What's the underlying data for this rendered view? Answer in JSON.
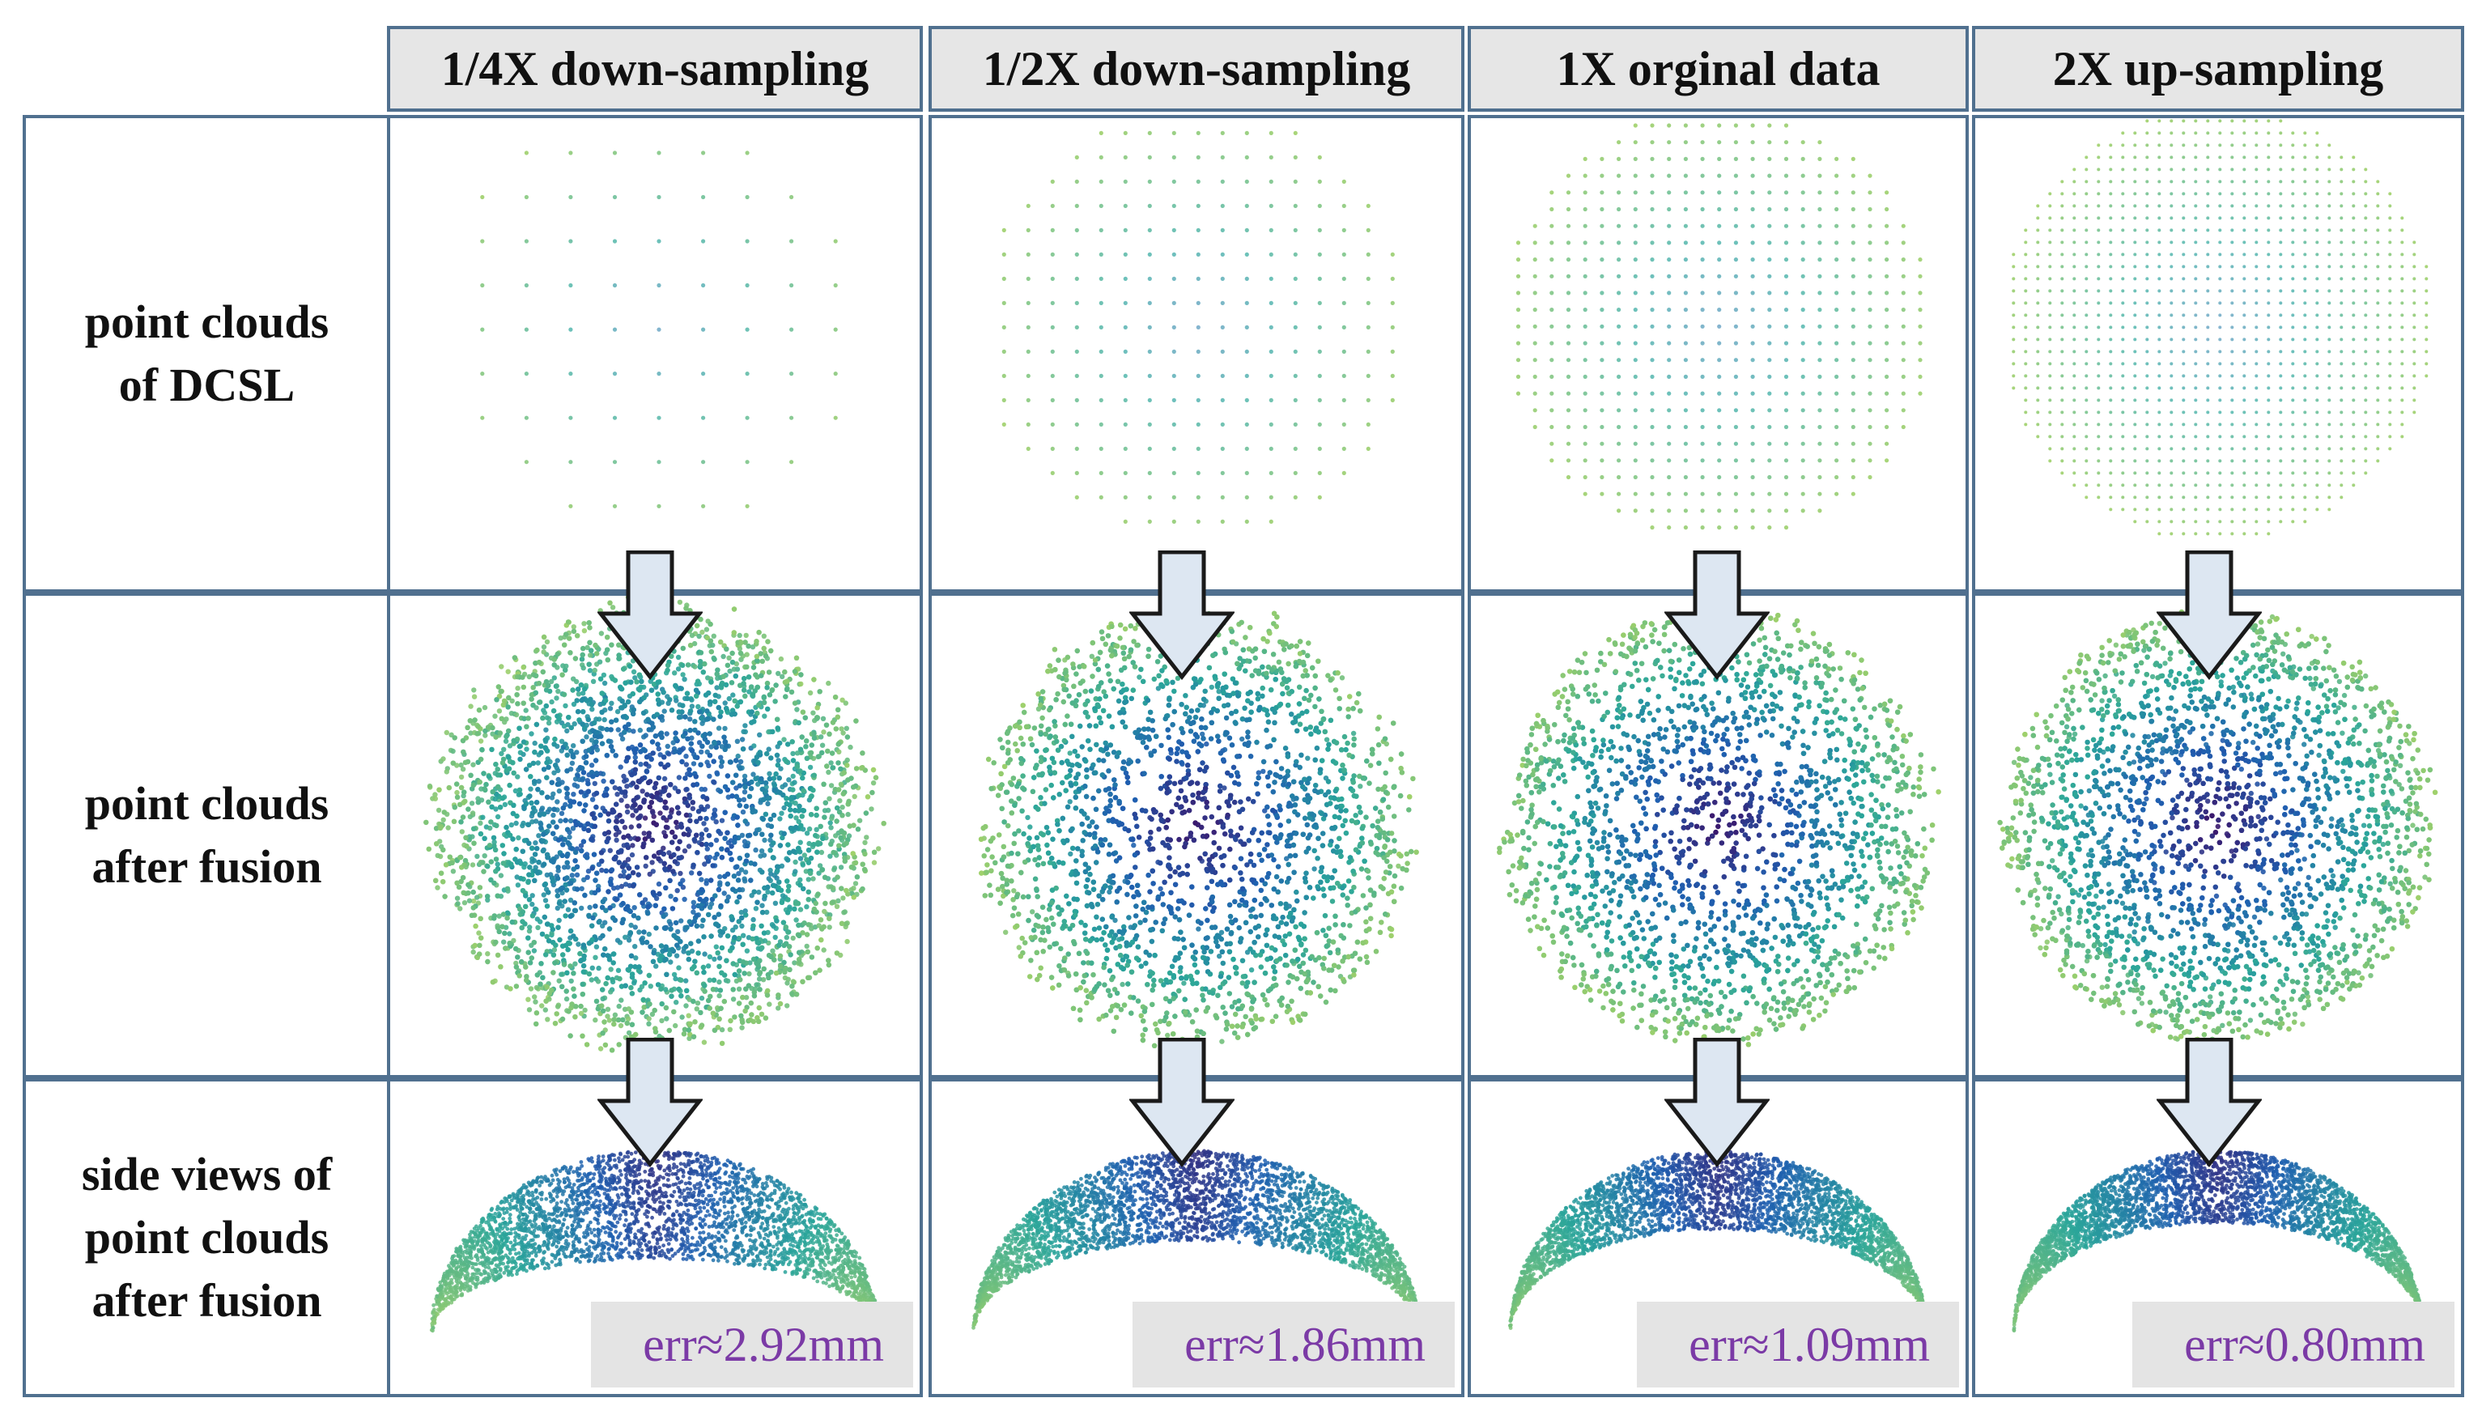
{
  "columns": [
    {
      "header": "1/4X down-sampling",
      "error": "err≈2.92mm"
    },
    {
      "header": "1/2X down-sampling",
      "error": "err≈1.86mm"
    },
    {
      "header": "1X orginal data",
      "error": "err≈1.09mm"
    },
    {
      "header": "2X up-sampling",
      "error": "err≈0.80mm"
    }
  ],
  "rows": {
    "dcsl": {
      "line1": "point clouds",
      "line2": "of DCSL"
    },
    "fusion": {
      "line1": "point clouds",
      "line2": "after fusion"
    },
    "side": {
      "line1": "side views of",
      "line2": "point clouds",
      "line3": "after fusion"
    }
  },
  "colors": {
    "border": "#50708f",
    "header_bg": "#e6e6e6",
    "error_text": "#7b3aa6",
    "arrow_fill": "#dde7f2",
    "arrow_stroke": "#1a1a1a",
    "sphere_center": "#3a1a6e",
    "sphere_mid": "#1f5fb0",
    "sphere_edge": "#2aa59a",
    "sphere_rim": "#9fd06a"
  }
}
